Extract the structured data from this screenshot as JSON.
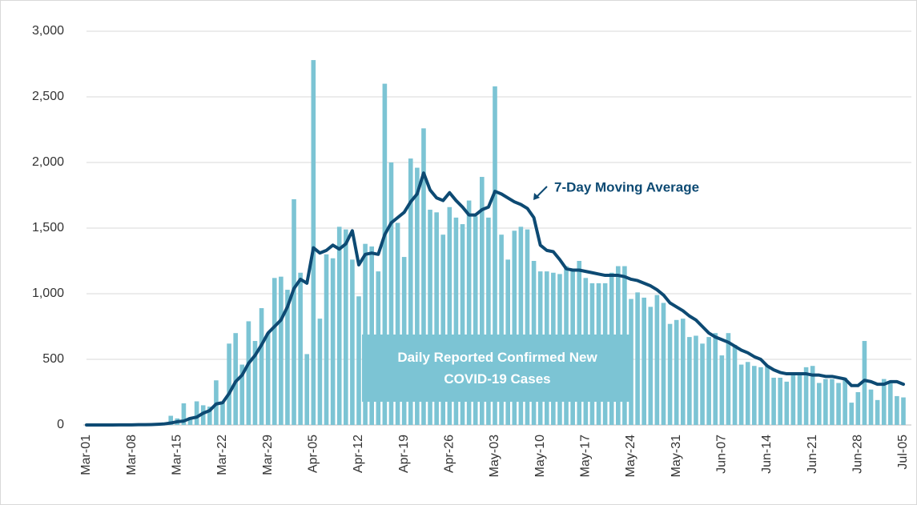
{
  "chart_data": {
    "type": "bar",
    "categories": [
      "Mar-01",
      null,
      null,
      null,
      null,
      null,
      null,
      "Mar-08",
      null,
      null,
      null,
      null,
      null,
      null,
      "Mar-15",
      null,
      null,
      null,
      null,
      null,
      null,
      "Mar-22",
      null,
      null,
      null,
      null,
      null,
      null,
      "Mar-29",
      null,
      null,
      null,
      null,
      null,
      null,
      "Apr-05",
      null,
      null,
      null,
      null,
      null,
      null,
      "Apr-12",
      null,
      null,
      null,
      null,
      null,
      null,
      "Apr-19",
      null,
      null,
      null,
      null,
      null,
      null,
      "Apr-26",
      null,
      null,
      null,
      null,
      null,
      null,
      "May-03",
      null,
      null,
      null,
      null,
      null,
      null,
      "May-10",
      null,
      null,
      null,
      null,
      null,
      null,
      "May-17",
      null,
      null,
      null,
      null,
      null,
      null,
      "May-24",
      null,
      null,
      null,
      null,
      null,
      null,
      "May-31",
      null,
      null,
      null,
      null,
      null,
      null,
      "Jun-07",
      null,
      null,
      null,
      null,
      null,
      null,
      "Jun-14",
      null,
      null,
      null,
      null,
      null,
      null,
      "Jun-21",
      null,
      null,
      null,
      null,
      null,
      null,
      "Jun-28",
      null,
      null,
      null,
      null,
      null,
      null,
      "Jul-05"
    ],
    "series": [
      {
        "type": "bar",
        "color": "#7cc4d4",
        "values": [
          0,
          0,
          0,
          0,
          0,
          1,
          2,
          2,
          3,
          5,
          10,
          15,
          20,
          70,
          50,
          165,
          60,
          180,
          150,
          140,
          340,
          170,
          620,
          700,
          460,
          790,
          640,
          890,
          700,
          1120,
          1130,
          1030,
          1720,
          1160,
          540,
          2780,
          810,
          1300,
          1270,
          1510,
          1490,
          1260,
          980,
          1380,
          1360,
          1170,
          2600,
          2000,
          1540,
          1280,
          2030,
          1960,
          2260,
          1640,
          1620,
          1450,
          1660,
          1580,
          1530,
          1710,
          1590,
          1890,
          1580,
          2580,
          1450,
          1260,
          1480,
          1510,
          1490,
          1250,
          1170,
          1170,
          1160,
          1150,
          1210,
          1180,
          1250,
          1120,
          1080,
          1080,
          1080,
          1160,
          1210,
          1210,
          960,
          1010,
          970,
          900,
          990,
          930,
          770,
          800,
          810,
          670,
          680,
          620,
          670,
          700,
          530,
          700,
          610,
          460,
          480,
          450,
          440,
          450,
          360,
          360,
          330,
          390,
          400,
          440,
          450,
          320,
          350,
          350,
          320,
          360,
          170,
          250,
          640,
          270,
          190,
          350,
          320,
          220,
          210
        ]
      },
      {
        "type": "line",
        "color": "#0d4a73",
        "values": [
          0,
          0,
          0,
          0,
          0,
          1,
          1,
          1,
          2,
          2,
          3,
          5,
          8,
          15,
          25,
          30,
          50,
          60,
          90,
          110,
          160,
          170,
          240,
          330,
          380,
          470,
          530,
          610,
          700,
          750,
          800,
          900,
          1040,
          1110,
          1080,
          1350,
          1310,
          1330,
          1370,
          1340,
          1380,
          1480,
          1220,
          1300,
          1310,
          1300,
          1450,
          1540,
          1580,
          1620,
          1700,
          1760,
          1920,
          1790,
          1730,
          1710,
          1770,
          1710,
          1660,
          1600,
          1600,
          1640,
          1660,
          1780,
          1760,
          1730,
          1700,
          1680,
          1650,
          1580,
          1370,
          1330,
          1320,
          1260,
          1190,
          1180,
          1180,
          1170,
          1160,
          1150,
          1140,
          1140,
          1140,
          1130,
          1110,
          1100,
          1080,
          1060,
          1030,
          990,
          930,
          900,
          870,
          830,
          800,
          750,
          700,
          670,
          650,
          630,
          600,
          570,
          550,
          520,
          500,
          450,
          420,
          400,
          390,
          390,
          390,
          390,
          380,
          380,
          370,
          370,
          360,
          350,
          300,
          300,
          340,
          330,
          310,
          310,
          330,
          330,
          310
        ]
      }
    ],
    "annotations": [
      "7-Day Moving Average",
      "Daily Reported Confirmed New COVID-19 Cases"
    ],
    "ylim": [
      0,
      3000
    ],
    "yticks": [
      0,
      500,
      {
        "value": 1000,
        "label": "1,000"
      },
      {
        "value": 1500,
        "label": "1,500"
      },
      {
        "value": 2000,
        "label": "2,000"
      },
      {
        "value": 2500,
        "label": "2,500"
      },
      {
        "value": 3000,
        "label": "3,000"
      }
    ],
    "grid": true
  }
}
